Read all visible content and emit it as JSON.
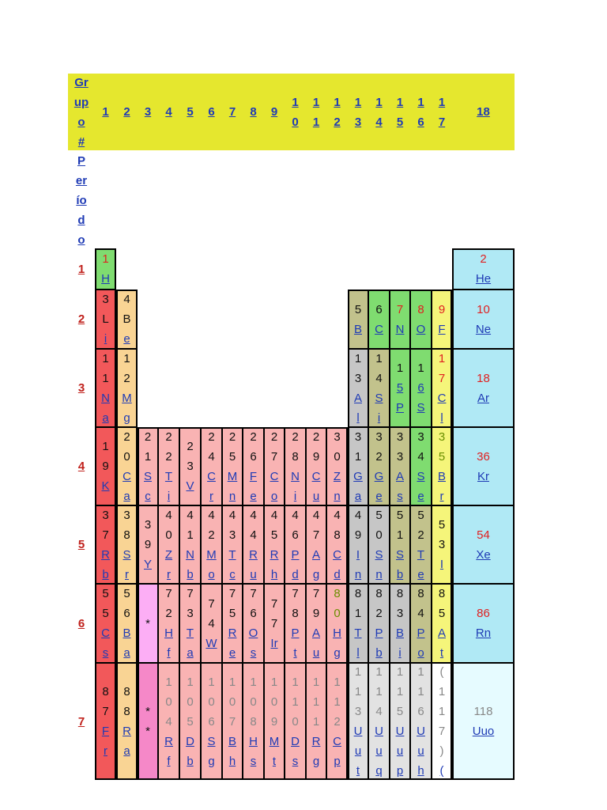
{
  "header": {
    "group_label": [
      "Gr",
      "up",
      "o",
      "#"
    ],
    "period_label": [
      "P",
      "er",
      "ío",
      "d",
      "o"
    ],
    "groups": [
      [
        "1"
      ],
      [
        "2"
      ],
      [
        "3"
      ],
      [
        "4"
      ],
      [
        "5"
      ],
      [
        "6"
      ],
      [
        "7"
      ],
      [
        "8"
      ],
      [
        "9"
      ],
      [
        "1",
        "0"
      ],
      [
        "1",
        "1"
      ],
      [
        "1",
        "2"
      ],
      [
        "1",
        "3"
      ],
      [
        "1",
        "4"
      ],
      [
        "1",
        "5"
      ],
      [
        "1",
        "6"
      ],
      [
        "1",
        "7"
      ],
      [
        "18"
      ]
    ]
  },
  "periods": [
    "1",
    "2",
    "3",
    "4",
    "5",
    "6",
    "7"
  ],
  "colors": {
    "header_bg": "#e5e72e",
    "alkali": "#f2585a",
    "alkaline_earth": "#f9d494",
    "transition": "#f9b3b3",
    "post_transition": "#c6c6c6",
    "metalloid": "#c2c28c",
    "nonmetal": "#7fdc70",
    "halogen": "#f5f57a",
    "noble": "#b0e9f5",
    "lanthanide": "#fcaef5",
    "actinide": "#f588c8",
    "unknown": "#e2e2e2",
    "number_red": "#e02020",
    "number_black": "#111111",
    "number_gray": "#888888"
  },
  "elements": [
    {
      "lines": [
        "1",
        "H"
      ],
      "link": 1,
      "color": "#7fdc70",
      "num": "#e02020"
    },
    {
      "lines": [
        "2",
        "He"
      ],
      "link": 1,
      "color": "#b0e9f5",
      "num": "#e02020"
    },
    {
      "lines": [
        "3",
        "L",
        "i"
      ],
      "link": 1,
      "color": "#f2585a",
      "num": "#111111"
    },
    {
      "lines": [
        "4",
        "B",
        "e"
      ],
      "link": 1,
      "color": "#f9d494",
      "num": "#111111"
    },
    {
      "lines": [
        "5",
        "B"
      ],
      "link": 1,
      "color": "#c2c28c",
      "num": "#111111"
    },
    {
      "lines": [
        "6",
        "C"
      ],
      "link": 1,
      "color": "#7fdc70",
      "num": "#111111"
    },
    {
      "lines": [
        "7",
        "N"
      ],
      "link": 1,
      "color": "#7fdc70",
      "num": "#e02020"
    },
    {
      "lines": [
        "8",
        "O"
      ],
      "link": 1,
      "color": "#7fdc70",
      "num": "#e02020"
    },
    {
      "lines": [
        "9",
        "F"
      ],
      "link": 1,
      "color": "#f5f57a",
      "num": "#e02020"
    },
    {
      "lines": [
        "10",
        "Ne"
      ],
      "link": 1,
      "color": "#b0e9f5",
      "num": "#e02020"
    },
    {
      "lines": [
        "1",
        "1",
        "N",
        "a"
      ],
      "link": 2,
      "color": "#f2585a",
      "num": "#111111"
    },
    {
      "lines": [
        "1",
        "2",
        "M",
        "g"
      ],
      "link": 2,
      "color": "#f9d494",
      "num": "#111111"
    },
    {
      "lines": [
        "1",
        "3",
        "A",
        "l"
      ],
      "link": 2,
      "color": "#c6c6c6",
      "num": "#111111"
    },
    {
      "lines": [
        "1",
        "4",
        "S",
        "i"
      ],
      "link": 2,
      "color": "#c2c28c",
      "num": "#111111"
    },
    {
      "lines": [
        "1",
        "5",
        "P"
      ],
      "link": 2,
      "color": "#7fdc70",
      "num": "#111111"
    },
    {
      "lines": [
        "1",
        "6",
        "S"
      ],
      "link": 2,
      "color": "#7fdc70",
      "num": "#111111"
    },
    {
      "lines": [
        "1",
        "7",
        "C",
        "l"
      ],
      "link": 2,
      "color": "#f5f57a",
      "num": "#e02020"
    },
    {
      "lines": [
        "18",
        "Ar"
      ],
      "link": 1,
      "color": "#b0e9f5",
      "num": "#e02020"
    },
    {
      "lines": [
        "1",
        "9",
        "K"
      ],
      "link": 1,
      "color": "#f2585a",
      "num": "#111111"
    },
    {
      "lines": [
        "2",
        "0",
        "C",
        "a"
      ],
      "link": 2,
      "color": "#f9d494",
      "num": "#111111"
    },
    {
      "lines": [
        "2",
        "1",
        "S",
        "c"
      ],
      "link": 2,
      "color": "#f9b3b3",
      "num": "#111111"
    },
    {
      "lines": [
        "2",
        "2",
        "T",
        "i"
      ],
      "link": 2,
      "color": "#f9b3b3",
      "num": "#111111"
    },
    {
      "lines": [
        "2",
        "3",
        "V"
      ],
      "link": 1,
      "color": "#f9b3b3",
      "num": "#111111"
    },
    {
      "lines": [
        "2",
        "4",
        "C",
        "r"
      ],
      "link": 2,
      "color": "#f9b3b3",
      "num": "#111111"
    },
    {
      "lines": [
        "2",
        "5",
        "M",
        "n"
      ],
      "link": 2,
      "color": "#f9b3b3",
      "num": "#111111"
    },
    {
      "lines": [
        "2",
        "6",
        "F",
        "e"
      ],
      "link": 2,
      "color": "#f9b3b3",
      "num": "#111111"
    },
    {
      "lines": [
        "2",
        "7",
        "C",
        "o"
      ],
      "link": 2,
      "color": "#f9b3b3",
      "num": "#111111"
    },
    {
      "lines": [
        "2",
        "8",
        "N",
        "i"
      ],
      "link": 2,
      "color": "#f9b3b3",
      "num": "#111111"
    },
    {
      "lines": [
        "2",
        "9",
        "C",
        "u"
      ],
      "link": 2,
      "color": "#f9b3b3",
      "num": "#111111"
    },
    {
      "lines": [
        "3",
        "0",
        "Z",
        "n"
      ],
      "link": 2,
      "color": "#f9b3b3",
      "num": "#111111"
    },
    {
      "lines": [
        "3",
        "1",
        "G",
        "a"
      ],
      "link": 2,
      "color": "#c6c6c6",
      "num": "#111111"
    },
    {
      "lines": [
        "3",
        "2",
        "G",
        "e"
      ],
      "link": 2,
      "color": "#c2c28c",
      "num": "#111111"
    },
    {
      "lines": [
        "3",
        "3",
        "A",
        "s"
      ],
      "link": 2,
      "color": "#c2c28c",
      "num": "#111111"
    },
    {
      "lines": [
        "3",
        "4",
        "S",
        "e"
      ],
      "link": 2,
      "color": "#7fdc70",
      "num": "#111111"
    },
    {
      "lines": [
        "3",
        "5",
        "B",
        "r"
      ],
      "link": 2,
      "color": "#f5f57a",
      "num": "#6a8f00"
    },
    {
      "lines": [
        "36",
        "Kr"
      ],
      "link": 1,
      "color": "#b0e9f5",
      "num": "#e02020"
    },
    {
      "lines": [
        "3",
        "7",
        "R",
        "b"
      ],
      "link": 2,
      "color": "#f2585a",
      "num": "#111111"
    },
    {
      "lines": [
        "3",
        "8",
        "S",
        "r"
      ],
      "link": 2,
      "color": "#f9d494",
      "num": "#111111"
    },
    {
      "lines": [
        "3",
        "9",
        "Y"
      ],
      "link": 1,
      "color": "#f9b3b3",
      "num": "#111111"
    },
    {
      "lines": [
        "4",
        "0",
        "Z",
        "r"
      ],
      "link": 2,
      "color": "#f9b3b3",
      "num": "#111111"
    },
    {
      "lines": [
        "4",
        "1",
        "N",
        "b"
      ],
      "link": 2,
      "color": "#f9b3b3",
      "num": "#111111"
    },
    {
      "lines": [
        "4",
        "2",
        "M",
        "o"
      ],
      "link": 2,
      "color": "#f9b3b3",
      "num": "#111111"
    },
    {
      "lines": [
        "4",
        "3",
        "T",
        "c"
      ],
      "link": 2,
      "color": "#f9b3b3",
      "num": "#111111"
    },
    {
      "lines": [
        "4",
        "4",
        "R",
        "u"
      ],
      "link": 2,
      "color": "#f9b3b3",
      "num": "#111111"
    },
    {
      "lines": [
        "4",
        "5",
        "R",
        "h"
      ],
      "link": 2,
      "color": "#f9b3b3",
      "num": "#111111"
    },
    {
      "lines": [
        "4",
        "6",
        "P",
        "d"
      ],
      "link": 2,
      "color": "#f9b3b3",
      "num": "#111111"
    },
    {
      "lines": [
        "4",
        "7",
        "A",
        "g"
      ],
      "link": 2,
      "color": "#f9b3b3",
      "num": "#111111"
    },
    {
      "lines": [
        "4",
        "8",
        "C",
        "d"
      ],
      "link": 2,
      "color": "#f9b3b3",
      "num": "#111111"
    },
    {
      "lines": [
        "4",
        "9",
        "I",
        "n"
      ],
      "link": 2,
      "color": "#c6c6c6",
      "num": "#111111"
    },
    {
      "lines": [
        "5",
        "0",
        "S",
        "n"
      ],
      "link": 2,
      "color": "#c6c6c6",
      "num": "#111111"
    },
    {
      "lines": [
        "5",
        "1",
        "S",
        "b"
      ],
      "link": 2,
      "color": "#c2c28c",
      "num": "#111111"
    },
    {
      "lines": [
        "5",
        "2",
        "T",
        "e"
      ],
      "link": 2,
      "color": "#c2c28c",
      "num": "#111111"
    },
    {
      "lines": [
        "5",
        "3",
        "I"
      ],
      "link": 1,
      "color": "#f5f57a",
      "num": "#111111"
    },
    {
      "lines": [
        "54",
        "Xe"
      ],
      "link": 1,
      "color": "#b0e9f5",
      "num": "#e02020"
    },
    {
      "lines": [
        "5",
        "5",
        "C",
        "s"
      ],
      "link": 2,
      "color": "#f2585a",
      "num": "#111111"
    },
    {
      "lines": [
        "5",
        "6",
        "B",
        "a"
      ],
      "link": 2,
      "color": "#f9d494",
      "num": "#111111"
    },
    {
      "lines": [
        "*"
      ],
      "link": 0,
      "color": "#fcaef5",
      "num": "#111111"
    },
    {
      "lines": [
        "7",
        "2",
        "H",
        "f"
      ],
      "link": 2,
      "color": "#f9b3b3",
      "num": "#111111"
    },
    {
      "lines": [
        "7",
        "3",
        "T",
        "a"
      ],
      "link": 2,
      "color": "#f9b3b3",
      "num": "#111111"
    },
    {
      "lines": [
        "7",
        "4",
        "W"
      ],
      "link": 1,
      "color": "#f9b3b3",
      "num": "#111111"
    },
    {
      "lines": [
        "7",
        "5",
        "R",
        "e"
      ],
      "link": 2,
      "color": "#f9b3b3",
      "num": "#111111"
    },
    {
      "lines": [
        "7",
        "6",
        "O",
        "s"
      ],
      "link": 2,
      "color": "#f9b3b3",
      "num": "#111111"
    },
    {
      "lines": [
        "7",
        "7",
        "Ir"
      ],
      "link": 1,
      "color": "#f9b3b3",
      "num": "#111111"
    },
    {
      "lines": [
        "7",
        "8",
        "P",
        "t"
      ],
      "link": 2,
      "color": "#f9b3b3",
      "num": "#111111"
    },
    {
      "lines": [
        "7",
        "9",
        "A",
        "u"
      ],
      "link": 2,
      "color": "#f9b3b3",
      "num": "#111111"
    },
    {
      "lines": [
        "8",
        "0",
        "H",
        "g"
      ],
      "link": 2,
      "color": "#f9b3b3",
      "num": "#6a8f00"
    },
    {
      "lines": [
        "8",
        "1",
        "T",
        "l"
      ],
      "link": 2,
      "color": "#c6c6c6",
      "num": "#111111"
    },
    {
      "lines": [
        "8",
        "2",
        "P",
        "b"
      ],
      "link": 2,
      "color": "#c6c6c6",
      "num": "#111111"
    },
    {
      "lines": [
        "8",
        "3",
        "B",
        "i"
      ],
      "link": 2,
      "color": "#c6c6c6",
      "num": "#111111"
    },
    {
      "lines": [
        "8",
        "4",
        "P",
        "o"
      ],
      "link": 2,
      "color": "#c2c28c",
      "num": "#111111"
    },
    {
      "lines": [
        "8",
        "5",
        "A",
        "t"
      ],
      "link": 2,
      "color": "#f5f57a",
      "num": "#111111"
    },
    {
      "lines": [
        "86",
        "Rn"
      ],
      "link": 1,
      "color": "#b0e9f5",
      "num": "#e02020"
    },
    {
      "lines": [
        "8",
        "7",
        "F",
        "r"
      ],
      "link": 2,
      "color": "#f2585a",
      "num": "#111111"
    },
    {
      "lines": [
        "8",
        "8",
        "R",
        "a"
      ],
      "link": 2,
      "color": "#f9d494",
      "num": "#111111"
    },
    {
      "lines": [
        "*",
        "*"
      ],
      "link": 0,
      "color": "#f588c8",
      "num": "#111111"
    },
    {
      "lines": [
        "1",
        "0",
        "4",
        "R",
        "f"
      ],
      "link": 2,
      "color": "#f9b3b3",
      "num": "#888888"
    },
    {
      "lines": [
        "1",
        "0",
        "5",
        "D",
        "b"
      ],
      "link": 2,
      "color": "#f9b3b3",
      "num": "#888888"
    },
    {
      "lines": [
        "1",
        "0",
        "6",
        "S",
        "g"
      ],
      "link": 2,
      "color": "#f9b3b3",
      "num": "#888888"
    },
    {
      "lines": [
        "1",
        "0",
        "7",
        "B",
        "h"
      ],
      "link": 2,
      "color": "#f9b3b3",
      "num": "#888888"
    },
    {
      "lines": [
        "1",
        "0",
        "8",
        "H",
        "s"
      ],
      "link": 2,
      "color": "#f9b3b3",
      "num": "#888888"
    },
    {
      "lines": [
        "1",
        "0",
        "9",
        "M",
        "t"
      ],
      "link": 2,
      "color": "#f9b3b3",
      "num": "#888888"
    },
    {
      "lines": [
        "1",
        "1",
        "0",
        "D",
        "s"
      ],
      "link": 2,
      "color": "#f9b3b3",
      "num": "#888888"
    },
    {
      "lines": [
        "1",
        "1",
        "1",
        "R",
        "g"
      ],
      "link": 2,
      "color": "#f9b3b3",
      "num": "#888888"
    },
    {
      "lines": [
        "1",
        "1",
        "2",
        "C",
        "p"
      ],
      "link": 2,
      "color": "#f9b3b3",
      "num": "#888888"
    },
    {
      "lines": [
        "1",
        "1",
        "3",
        "U",
        "u",
        "t"
      ],
      "link": 3,
      "color": "#e2e2e2",
      "num": "#888888"
    },
    {
      "lines": [
        "1",
        "1",
        "4",
        "U",
        "u",
        "q"
      ],
      "link": 3,
      "color": "#e2e2e2",
      "num": "#888888"
    },
    {
      "lines": [
        "1",
        "1",
        "5",
        "U",
        "u",
        "p"
      ],
      "link": 3,
      "color": "#e2e2e2",
      "num": "#888888"
    },
    {
      "lines": [
        "1",
        "1",
        "6",
        "U",
        "u",
        "h"
      ],
      "link": 3,
      "color": "#e2e2e2",
      "num": "#888888"
    },
    {
      "lines": [
        "(",
        "1",
        "1",
        "7",
        ")",
        "("
      ],
      "link": 1,
      "color": "#ffffff",
      "num": "#888888"
    },
    {
      "lines": [
        "118",
        "Uuo"
      ],
      "link": 1,
      "color": "#e6fbff",
      "num": "#888888"
    }
  ]
}
